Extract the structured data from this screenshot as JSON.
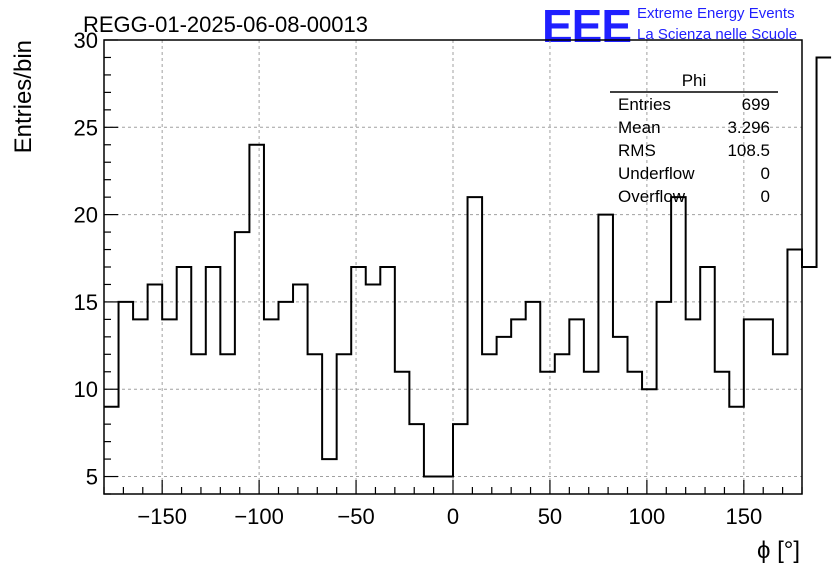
{
  "chart_data": {
    "type": "histogram",
    "title": "REGG-01-2025-06-08-00013",
    "xlabel": "ϕ [°]",
    "ylabel": "Entries/bin",
    "xlim": [
      -180,
      180
    ],
    "ylim": [
      4,
      30
    ],
    "xticks": [
      -150,
      -100,
      -50,
      0,
      50,
      100,
      150
    ],
    "yticks": [
      5,
      10,
      15,
      20,
      25,
      30
    ],
    "grid": true,
    "bin_edges_start": -180,
    "bin_width": 7.5,
    "values": [
      9,
      15,
      14,
      16,
      14,
      17,
      12,
      17,
      12,
      19,
      24,
      14,
      15,
      16,
      12,
      6,
      12,
      17,
      16,
      17,
      11,
      8,
      5,
      5,
      8,
      21,
      12,
      13,
      14,
      15,
      11,
      12,
      14,
      11,
      20,
      13,
      11,
      10,
      15,
      21,
      14,
      17,
      11,
      9,
      14,
      14,
      12,
      18,
      17,
      29
    ],
    "line_color": "#000000"
  },
  "stats_box": {
    "title": "Phi",
    "rows": [
      {
        "label": "Entries",
        "value": "699"
      },
      {
        "label": "Mean",
        "value": "3.296"
      },
      {
        "label": "RMS",
        "value": "108.5"
      },
      {
        "label": "Underflow",
        "value": "0"
      },
      {
        "label": "Overflow",
        "value": "0"
      }
    ]
  },
  "logo": {
    "mark": "EEE",
    "line1": "Extreme Energy Events",
    "line2": "La Scienza nelle Scuole",
    "color": "#1f1fff"
  }
}
